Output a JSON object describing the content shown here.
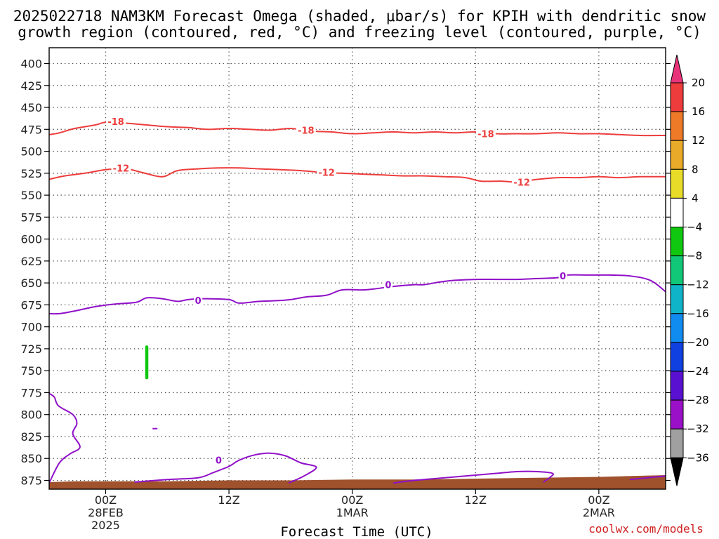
{
  "chart_data": {
    "type": "contour",
    "title_lines": [
      "2025022718 NAM3KM Forecast Omega (shaded, μbar/s) for KPIH with dendritic snow",
      "growth region (contoured, red, °C) and freezing level (contoured, purple, °C)"
    ],
    "xlabel": "Forecast Time (UTC)",
    "credit": "coolwx.com/models",
    "y_axis": {
      "ticks": [
        400,
        425,
        450,
        475,
        500,
        525,
        550,
        575,
        600,
        625,
        650,
        675,
        700,
        725,
        750,
        775,
        800,
        825,
        850,
        875
      ],
      "range": [
        382,
        885
      ],
      "unit": "hPa"
    },
    "x_axis": {
      "range_hours": [
        -5.5,
        54.5
      ],
      "ticks": [
        {
          "hour": 0,
          "lines": [
            "00Z",
            "28FEB",
            "2025"
          ]
        },
        {
          "hour": 12,
          "lines": [
            "12Z"
          ]
        },
        {
          "hour": 24,
          "lines": [
            "00Z",
            "1MAR"
          ]
        },
        {
          "hour": 36,
          "lines": [
            "12Z"
          ]
        },
        {
          "hour": 48,
          "lines": [
            "00Z",
            "2MAR"
          ]
        }
      ]
    },
    "grid": "dotted",
    "colorbar": {
      "levels": [
        20,
        16,
        12,
        8,
        4,
        -4,
        -8,
        -12,
        -16,
        -20,
        -24,
        -28,
        -32,
        -36
      ],
      "colors": [
        "#e8347a",
        "#ee3c3c",
        "#ee7a28",
        "#e8aa28",
        "#e8dc28",
        "#ffffff",
        "#10c810",
        "#10c878",
        "#10b4c8",
        "#108cf0",
        "#1040e0",
        "#5a10d0",
        "#9a10c8",
        "#a0a0a0",
        "#000000"
      ]
    },
    "contours": [
      {
        "name": "-18",
        "color": "#ee3c3c",
        "points": [
          [
            -5.5,
            481
          ],
          [
            -4.5,
            479
          ],
          [
            -3,
            474
          ],
          [
            -1,
            470
          ],
          [
            0,
            467
          ],
          [
            2,
            468
          ],
          [
            4,
            470
          ],
          [
            6,
            472
          ],
          [
            8,
            473
          ],
          [
            10,
            475
          ],
          [
            12,
            474
          ],
          [
            14,
            475
          ],
          [
            16,
            476
          ],
          [
            18,
            474
          ],
          [
            20,
            477
          ],
          [
            22,
            478
          ],
          [
            24,
            480
          ],
          [
            26,
            479
          ],
          [
            28,
            478
          ],
          [
            30,
            479
          ],
          [
            32,
            478
          ],
          [
            34,
            479
          ],
          [
            36,
            478
          ],
          [
            38,
            480
          ],
          [
            40,
            480
          ],
          [
            42,
            480
          ],
          [
            44,
            479
          ],
          [
            46,
            480
          ],
          [
            48,
            480
          ],
          [
            50,
            481
          ],
          [
            52,
            482
          ],
          [
            54.5,
            482
          ]
        ],
        "labels": [
          [
            1,
            466
          ],
          [
            19.5,
            476
          ],
          [
            37,
            480
          ]
        ]
      },
      {
        "name": "-12",
        "color": "#ee3c3c",
        "points": [
          [
            -5.5,
            532
          ],
          [
            -4,
            528
          ],
          [
            -2,
            525
          ],
          [
            0,
            521
          ],
          [
            2,
            520
          ],
          [
            3.5,
            524
          ],
          [
            5.5,
            529
          ],
          [
            7,
            522
          ],
          [
            9,
            520
          ],
          [
            11,
            519
          ],
          [
            13,
            519
          ],
          [
            15,
            520
          ],
          [
            17,
            521
          ],
          [
            19,
            522
          ],
          [
            21,
            524
          ],
          [
            23,
            525
          ],
          [
            25,
            526
          ],
          [
            27,
            527
          ],
          [
            29,
            528
          ],
          [
            31,
            528
          ],
          [
            33,
            529
          ],
          [
            35,
            530
          ],
          [
            36.5,
            534
          ],
          [
            38.5,
            534
          ],
          [
            40,
            535
          ],
          [
            42,
            532
          ],
          [
            44,
            530
          ],
          [
            46,
            530
          ],
          [
            48,
            529
          ],
          [
            50,
            530
          ],
          [
            52,
            529
          ],
          [
            54.5,
            529
          ]
        ],
        "labels": [
          [
            1.5,
            519
          ],
          [
            21.5,
            524
          ],
          [
            40.5,
            535
          ]
        ]
      },
      {
        "name": "0 freezing level (upper)",
        "color": "#9010c8",
        "points": [
          [
            -5.5,
            685
          ],
          [
            -4.5,
            685
          ],
          [
            -3,
            682
          ],
          [
            -1,
            677
          ],
          [
            1,
            674
          ],
          [
            3,
            672
          ],
          [
            4,
            667
          ],
          [
            5.5,
            668
          ],
          [
            7,
            671
          ],
          [
            8,
            669
          ],
          [
            9.5,
            668
          ],
          [
            12,
            669
          ],
          [
            13,
            673
          ],
          [
            15,
            671
          ],
          [
            17,
            670
          ],
          [
            18,
            669
          ],
          [
            19.5,
            666
          ],
          [
            21.5,
            664
          ],
          [
            23,
            658
          ],
          [
            25,
            658
          ],
          [
            26,
            657
          ],
          [
            28,
            654
          ],
          [
            30,
            652
          ],
          [
            31,
            652
          ],
          [
            32.5,
            649
          ],
          [
            34,
            647
          ],
          [
            36,
            646
          ],
          [
            38,
            646
          ],
          [
            40,
            646
          ],
          [
            42,
            645
          ],
          [
            44,
            644
          ],
          [
            45,
            641
          ],
          [
            47,
            641
          ],
          [
            49,
            641
          ],
          [
            51,
            642
          ],
          [
            53,
            647
          ],
          [
            54.5,
            660
          ]
        ],
        "labels": [
          [
            9,
            670
          ],
          [
            27.5,
            652
          ],
          [
            44.5,
            642
          ]
        ]
      },
      {
        "name": "0 freezing level (lower)",
        "color": "#9010c8",
        "points": [
          [
            2.8,
            877
          ],
          [
            6,
            874
          ],
          [
            9,
            872
          ],
          [
            10.5,
            866
          ],
          [
            12,
            859
          ],
          [
            13,
            852
          ],
          [
            14.5,
            846
          ],
          [
            16,
            844
          ],
          [
            17.5,
            847
          ],
          [
            19,
            855
          ],
          [
            20.5,
            860
          ],
          [
            19.3,
            870
          ],
          [
            17.8,
            878
          ]
        ],
        "labels": [
          [
            11,
            852
          ]
        ]
      },
      {
        "name": "0 freezing level (right)",
        "color": "#9010c8",
        "points": [
          [
            28,
            878
          ],
          [
            30,
            875
          ],
          [
            32,
            873
          ],
          [
            34,
            871
          ],
          [
            36,
            869
          ],
          [
            38,
            867
          ],
          [
            40,
            865
          ],
          [
            42,
            865
          ],
          [
            43.5,
            867
          ],
          [
            43.2,
            872
          ],
          [
            42.6,
            877
          ]
        ],
        "labels": []
      },
      {
        "name": "0 left edge",
        "color": "#9010c8",
        "points": [
          [
            -5.5,
            776
          ],
          [
            -5,
            780
          ],
          [
            -4.6,
            790
          ],
          [
            -3.2,
            800
          ],
          [
            -2.8,
            810
          ],
          [
            -3.2,
            822
          ],
          [
            -2.5,
            837
          ],
          [
            -3.5,
            845
          ],
          [
            -4.5,
            855
          ],
          [
            -5.5,
            878
          ]
        ],
        "labels": []
      },
      {
        "name": "0 right edge",
        "color": "#9010c8",
        "points": [
          [
            51,
            874
          ],
          [
            54.5,
            870
          ]
        ],
        "labels": []
      }
    ],
    "shaded_features": [
      {
        "name": "omega -4 to -8 patch",
        "x": 4,
        "p": [
          723,
          758
        ],
        "color": "#10c810"
      },
      {
        "name": "small purple dash",
        "x": 4.8,
        "p": [
          816,
          816
        ],
        "color": "#9010c8"
      }
    ],
    "terrain": {
      "color": "#a0522d",
      "points": [
        [
          -5.5,
          877
        ],
        [
          -3,
          876
        ],
        [
          0,
          876
        ],
        [
          6,
          876
        ],
        [
          12,
          875
        ],
        [
          18,
          875
        ],
        [
          24,
          874
        ],
        [
          30,
          874
        ],
        [
          36,
          873
        ],
        [
          42,
          872
        ],
        [
          48,
          871
        ],
        [
          54.5,
          869
        ]
      ]
    }
  }
}
